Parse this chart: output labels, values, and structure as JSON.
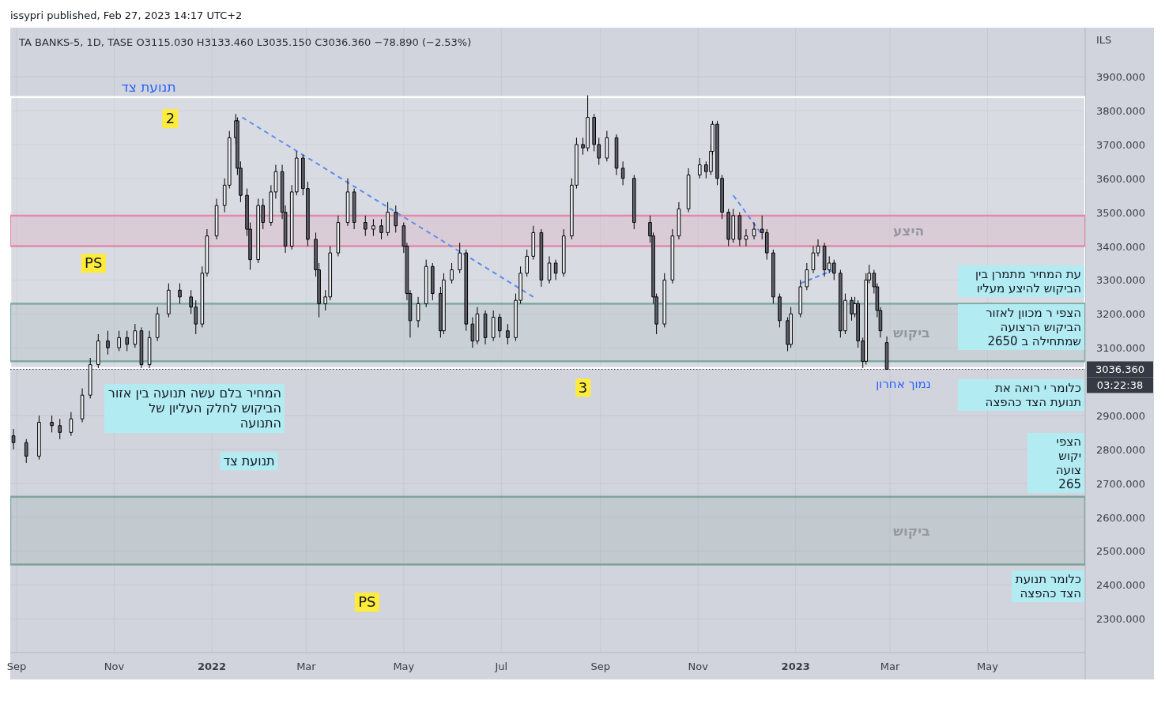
{
  "chart_data": {
    "type": "candlestick",
    "title": "TA BANKS-5, 1D, TASE  O3115.030  H3133.460  L3035.150  C3036.360  −78.890 (−2.53%)",
    "ylabel": "ILS",
    "xlim": [
      "2021-08-28",
      "2023-07-01"
    ],
    "ylim": [
      2200,
      4045
    ],
    "xticks": [
      {
        "value": "2021-09-01",
        "label": "Sep"
      },
      {
        "value": "2021-11-01",
        "label": "Nov"
      },
      {
        "value": "2022-01-01",
        "label": "2022"
      },
      {
        "value": "2022-03-01",
        "label": "Mar"
      },
      {
        "value": "2022-05-01",
        "label": "May"
      },
      {
        "value": "2022-07-01",
        "label": "Jul"
      },
      {
        "value": "2022-09-01",
        "label": "Sep"
      },
      {
        "value": "2022-11-01",
        "label": "Nov"
      },
      {
        "value": "2023-01-01",
        "label": "2023"
      },
      {
        "value": "2023-03-01",
        "label": "Mar"
      },
      {
        "value": "2023-05-01",
        "label": "May"
      }
    ],
    "yticks": [
      {
        "value": 2300,
        "label": "2300.000"
      },
      {
        "value": 2400,
        "label": "2400.000"
      },
      {
        "value": 2500,
        "label": "2500.000"
      },
      {
        "value": 2600,
        "label": "2600.000"
      },
      {
        "value": 2700,
        "label": "2700.000"
      },
      {
        "value": 2800,
        "label": "2800.000"
      },
      {
        "value": 2900,
        "label": "2900.000"
      },
      {
        "value": 3100,
        "label": "3100.000"
      },
      {
        "value": 3200,
        "label": "3200.000"
      },
      {
        "value": 3300,
        "label": "3300.000"
      },
      {
        "value": 3400,
        "label": "3400.000"
      },
      {
        "value": 3500,
        "label": "3500.000"
      },
      {
        "value": 3600,
        "label": "3600.000"
      },
      {
        "value": 3700,
        "label": "3700.000"
      },
      {
        "value": 3800,
        "label": "3800.000"
      },
      {
        "value": 3900,
        "label": "3900.000"
      }
    ],
    "grid": true,
    "x": [
      "2021-08-30",
      "2021-09-07",
      "2021-09-15",
      "2021-09-23",
      "2021-09-28",
      "2021-10-05",
      "2021-10-12",
      "2021-10-17",
      "2021-10-22",
      "2021-10-28",
      "2021-11-04",
      "2021-11-09",
      "2021-11-14",
      "2021-11-18",
      "2021-11-23",
      "2021-11-28",
      "2021-12-05",
      "2021-12-12",
      "2021-12-19",
      "2021-12-22",
      "2021-12-26",
      "2021-12-29",
      "2022-01-04",
      "2022-01-09",
      "2022-01-12",
      "2022-01-16",
      "2022-01-17",
      "2022-01-19",
      "2022-01-23",
      "2022-01-25",
      "2022-01-30",
      "2022-02-02",
      "2022-02-07",
      "2022-02-10",
      "2022-02-14",
      "2022-02-16",
      "2022-02-20",
      "2022-02-23",
      "2022-02-27",
      "2022-03-02",
      "2022-03-07",
      "2022-03-09",
      "2022-03-13",
      "2022-03-16",
      "2022-03-21",
      "2022-03-27",
      "2022-03-31",
      "2022-04-07",
      "2022-04-12",
      "2022-04-17",
      "2022-04-21",
      "2022-04-26",
      "2022-05-01",
      "2022-05-03",
      "2022-05-05",
      "2022-05-10",
      "2022-05-15",
      "2022-05-19",
      "2022-05-24",
      "2022-05-26",
      "2022-05-31",
      "2022-06-05",
      "2022-06-09",
      "2022-06-13",
      "2022-06-16",
      "2022-06-21",
      "2022-06-26",
      "2022-06-30",
      "2022-07-05",
      "2022-07-10",
      "2022-07-13",
      "2022-07-17",
      "2022-07-21",
      "2022-07-26",
      "2022-07-31",
      "2022-08-04",
      "2022-08-09",
      "2022-08-14",
      "2022-08-17",
      "2022-08-21",
      "2022-08-24",
      "2022-08-28",
      "2022-08-31",
      "2022-09-05",
      "2022-09-11",
      "2022-09-15",
      "2022-09-22",
      "2022-10-02",
      "2022-10-04",
      "2022-10-06",
      "2022-10-11",
      "2022-10-16",
      "2022-10-20",
      "2022-10-26",
      "2022-11-02",
      "2022-11-06",
      "2022-11-09",
      "2022-11-10",
      "2022-11-13",
      "2022-11-16",
      "2022-11-20",
      "2022-11-23",
      "2022-11-27",
      "2022-12-01",
      "2022-12-06",
      "2022-12-11",
      "2022-12-14",
      "2022-12-18",
      "2022-12-22",
      "2022-12-27",
      "2022-12-29",
      "2023-01-04",
      "2023-01-08",
      "2023-01-12",
      "2023-01-15",
      "2023-01-19",
      "2023-01-22",
      "2023-01-25",
      "2023-01-29",
      "2023-02-01",
      "2023-02-05",
      "2023-02-07",
      "2023-02-09",
      "2023-02-12",
      "2023-02-14",
      "2023-02-16",
      "2023-02-19",
      "2023-02-21",
      "2023-02-23",
      "2023-02-27"
    ],
    "ohlc": [
      [
        2840,
        2860,
        2800,
        2820
      ],
      [
        2820,
        2830,
        2760,
        2780
      ],
      [
        2780,
        2900,
        2770,
        2880
      ],
      [
        2880,
        2900,
        2850,
        2870
      ],
      [
        2870,
        2890,
        2830,
        2850
      ],
      [
        2850,
        2910,
        2840,
        2890
      ],
      [
        2890,
        2980,
        2880,
        2960
      ],
      [
        2960,
        3070,
        2950,
        3050
      ],
      [
        3050,
        3140,
        3040,
        3120
      ],
      [
        3120,
        3150,
        3080,
        3100
      ],
      [
        3100,
        3150,
        3090,
        3130
      ],
      [
        3130,
        3150,
        3090,
        3110
      ],
      [
        3110,
        3170,
        3100,
        3150
      ],
      [
        3150,
        3160,
        3040,
        3050
      ],
      [
        3050,
        3150,
        3040,
        3130
      ],
      [
        3130,
        3220,
        3120,
        3200
      ],
      [
        3200,
        3290,
        3190,
        3270
      ],
      [
        3270,
        3290,
        3230,
        3250
      ],
      [
        3250,
        3270,
        3200,
        3220
      ],
      [
        3220,
        3240,
        3140,
        3170
      ],
      [
        3170,
        3340,
        3160,
        3320
      ],
      [
        3320,
        3450,
        3310,
        3430
      ],
      [
        3430,
        3540,
        3420,
        3520
      ],
      [
        3520,
        3600,
        3500,
        3580
      ],
      [
        3580,
        3740,
        3570,
        3720
      ],
      [
        3720,
        3790,
        3700,
        3770
      ],
      [
        3770,
        3780,
        3610,
        3630
      ],
      [
        3630,
        3650,
        3530,
        3550
      ],
      [
        3550,
        3570,
        3430,
        3450
      ],
      [
        3450,
        3470,
        3330,
        3360
      ],
      [
        3360,
        3540,
        3350,
        3520
      ],
      [
        3520,
        3540,
        3450,
        3470
      ],
      [
        3470,
        3580,
        3460,
        3560
      ],
      [
        3560,
        3640,
        3540,
        3620
      ],
      [
        3620,
        3640,
        3480,
        3500
      ],
      [
        3500,
        3520,
        3380,
        3400
      ],
      [
        3400,
        3580,
        3390,
        3560
      ],
      [
        3560,
        3680,
        3550,
        3660
      ],
      [
        3660,
        3670,
        3550,
        3570
      ],
      [
        3570,
        3590,
        3400,
        3420
      ],
      [
        3420,
        3440,
        3310,
        3330
      ],
      [
        3330,
        3350,
        3190,
        3230
      ],
      [
        3230,
        3270,
        3210,
        3250
      ],
      [
        3250,
        3400,
        3240,
        3380
      ],
      [
        3380,
        3490,
        3370,
        3470
      ],
      [
        3470,
        3600,
        3460,
        3560
      ],
      [
        3560,
        3570,
        3450,
        3470
      ],
      [
        3470,
        3490,
        3430,
        3450
      ],
      [
        3450,
        3480,
        3430,
        3460
      ],
      [
        3460,
        3480,
        3420,
        3440
      ],
      [
        3440,
        3530,
        3430,
        3500
      ],
      [
        3500,
        3520,
        3440,
        3460
      ],
      [
        3460,
        3470,
        3380,
        3400
      ],
      [
        3400,
        3410,
        3240,
        3260
      ],
      [
        3260,
        3270,
        3130,
        3180
      ],
      [
        3180,
        3250,
        3160,
        3230
      ],
      [
        3230,
        3360,
        3220,
        3340
      ],
      [
        3340,
        3350,
        3240,
        3260
      ],
      [
        3260,
        3280,
        3130,
        3150
      ],
      [
        3150,
        3320,
        3140,
        3300
      ],
      [
        3300,
        3350,
        3290,
        3330
      ],
      [
        3330,
        3410,
        3320,
        3380
      ],
      [
        3380,
        3390,
        3150,
        3170
      ],
      [
        3170,
        3190,
        3100,
        3120
      ],
      [
        3120,
        3220,
        3110,
        3200
      ],
      [
        3200,
        3210,
        3110,
        3130
      ],
      [
        3130,
        3210,
        3120,
        3190
      ],
      [
        3190,
        3200,
        3130,
        3150
      ],
      [
        3150,
        3170,
        3110,
        3130
      ],
      [
        3130,
        3260,
        3120,
        3240
      ],
      [
        3240,
        3340,
        3230,
        3320
      ],
      [
        3320,
        3390,
        3310,
        3370
      ],
      [
        3370,
        3460,
        3360,
        3440
      ],
      [
        3440,
        3450,
        3280,
        3300
      ],
      [
        3300,
        3370,
        3290,
        3350
      ],
      [
        3350,
        3360,
        3300,
        3320
      ],
      [
        3320,
        3450,
        3310,
        3430
      ],
      [
        3430,
        3600,
        3420,
        3580
      ],
      [
        3580,
        3720,
        3570,
        3700
      ],
      [
        3700,
        3720,
        3670,
        3690
      ],
      [
        3690,
        3845,
        3680,
        3780
      ],
      [
        3780,
        3790,
        3680,
        3700
      ],
      [
        3700,
        3720,
        3640,
        3660
      ],
      [
        3660,
        3740,
        3650,
        3720
      ],
      [
        3720,
        3730,
        3610,
        3630
      ],
      [
        3630,
        3650,
        3580,
        3600
      ],
      [
        3600,
        3610,
        3450,
        3470
      ],
      [
        3470,
        3490,
        3410,
        3430
      ],
      [
        3430,
        3440,
        3230,
        3250
      ],
      [
        3250,
        3260,
        3140,
        3170
      ],
      [
        3170,
        3320,
        3160,
        3300
      ],
      [
        3300,
        3450,
        3290,
        3430
      ],
      [
        3430,
        3530,
        3420,
        3510
      ],
      [
        3510,
        3630,
        3500,
        3610
      ],
      [
        3610,
        3660,
        3600,
        3640
      ],
      [
        3640,
        3650,
        3600,
        3620
      ],
      [
        3620,
        3700,
        3610,
        3680
      ],
      [
        3680,
        3770,
        3670,
        3760
      ],
      [
        3760,
        3770,
        3580,
        3600
      ],
      [
        3600,
        3610,
        3480,
        3500
      ],
      [
        3500,
        3510,
        3400,
        3420
      ],
      [
        3420,
        3510,
        3410,
        3490
      ],
      [
        3490,
        3500,
        3400,
        3420
      ],
      [
        3420,
        3450,
        3400,
        3430
      ],
      [
        3430,
        3470,
        3420,
        3450
      ],
      [
        3450,
        3490,
        3420,
        3440
      ],
      [
        3440,
        3450,
        3360,
        3380
      ],
      [
        3380,
        3390,
        3230,
        3250
      ],
      [
        3250,
        3260,
        3160,
        3180
      ],
      [
        3180,
        3190,
        3090,
        3110
      ],
      [
        3110,
        3220,
        3100,
        3200
      ],
      [
        3200,
        3300,
        3190,
        3280
      ],
      [
        3280,
        3350,
        3270,
        3330
      ],
      [
        3330,
        3400,
        3320,
        3380
      ],
      [
        3380,
        3420,
        3370,
        3400
      ],
      [
        3400,
        3410,
        3310,
        3330
      ],
      [
        3330,
        3370,
        3320,
        3350
      ],
      [
        3350,
        3360,
        3300,
        3320
      ],
      [
        3320,
        3330,
        3130,
        3150
      ],
      [
        3150,
        3260,
        3140,
        3240
      ],
      [
        3240,
        3250,
        3180,
        3200
      ],
      [
        3200,
        3250,
        3190,
        3230
      ],
      [
        3230,
        3240,
        3100,
        3120
      ],
      [
        3120,
        3130,
        3040,
        3060
      ],
      [
        3060,
        3320,
        3050,
        3300
      ],
      [
        3300,
        3345,
        3290,
        3320
      ],
      [
        3320,
        3330,
        3260,
        3280
      ],
      [
        3280,
        3290,
        3190,
        3210
      ],
      [
        3210,
        3220,
        3130,
        3150
      ],
      [
        3115.03,
        3133.46,
        3035.15,
        3036.36
      ]
    ],
    "series": [
      {
        "type": "line",
        "color": "#5b8def",
        "line_style": "dashed",
        "x": [
          "2022-01-20",
          "2022-07-21"
        ],
        "values": [
          3780,
          3250
        ]
      },
      {
        "type": "line",
        "color": "#5b8def",
        "line_style": "dashed",
        "x": [
          "2022-11-23",
          "2022-12-10"
        ],
        "values": [
          3550,
          3440
        ]
      },
      {
        "type": "line",
        "color": "#5b8def",
        "line_style": "dashed",
        "x": [
          "2023-01-04",
          "2023-01-25"
        ],
        "values": [
          3290,
          3330
        ]
      }
    ],
    "bands": [
      {
        "axis": "y",
        "from": 3040,
        "to": 3840,
        "label": null,
        "color": "#ffffff"
      },
      {
        "axis": "y",
        "from": 3060,
        "to": 3230,
        "label": "ביקוש",
        "color": "#7fa9a1"
      },
      {
        "axis": "y",
        "from": 3400,
        "to": 3490,
        "label": "היצע",
        "color": "#e08aa8"
      },
      {
        "axis": "y",
        "from": 2460,
        "to": 2660,
        "label": "ביקוש",
        "color": "#7fa39a"
      }
    ],
    "ref_lines": [
      {
        "axis": "y",
        "value": 3036.36,
        "label": "3036.360",
        "color": "#363a45",
        "line_style": "dotted"
      }
    ],
    "annotations": [
      "issypri published, Feb 27, 2023 14:17 UTC+2",
      "תנועת צד",
      {
        "text": "2",
        "x": "2021-12-06",
        "y": 3776
      },
      {
        "text": "PS",
        "x": "2021-10-19",
        "y": 3350
      },
      "המחיר בלם עשה תנועה בין אזור הביקוש לחלק העליון של התנועה",
      {
        "text": "3",
        "x": "2022-08-21",
        "y": 2982
      },
      "תנועת צד",
      {
        "text": "PS",
        "x": "2022-04-08",
        "y": 2349
      },
      "נמוך אחרון",
      "עת המחיר מתמרן בין הביקוש להיצע מעליו",
      "הצפי ר מכוון לאזור הביקוש הרצועה שמתחילה ב 2650",
      "כלומר י רואה את תנועת הצד כהפצה",
      "הצפי יקוש צועה 265",
      "כלומר תנועת הצד כהפצה",
      "03:22:38"
    ]
  }
}
